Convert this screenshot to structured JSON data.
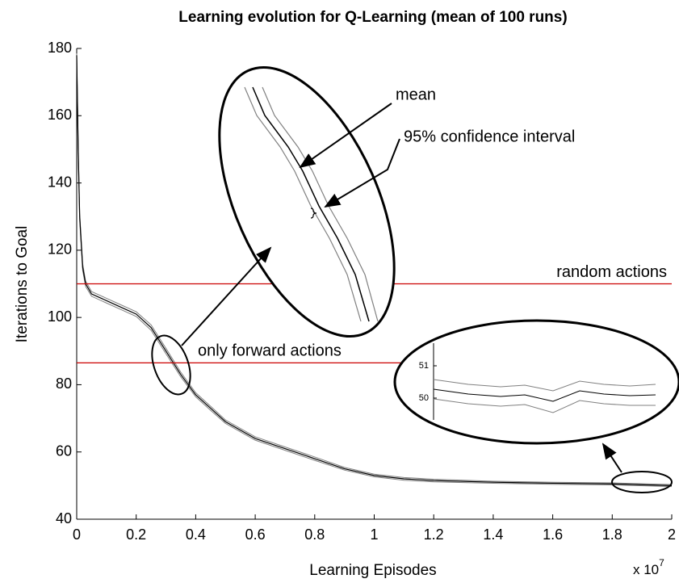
{
  "chart_data": {
    "type": "line",
    "title": "Learning evolution for Q-Learning (mean of 100 runs)",
    "x_label": "Learning Episodes",
    "y_label": "Iterations to Goal",
    "x_multiplier": {
      "base": "x 10",
      "exponent": "7"
    },
    "x": [
      0,
      0.005,
      0.01,
      0.02,
      0.03,
      0.05,
      0.1,
      0.15,
      0.2,
      0.25,
      0.3,
      0.35,
      0.4,
      0.45,
      0.5,
      0.6,
      0.7,
      0.8,
      0.9,
      1.0,
      1.1,
      1.2,
      1.4,
      1.6,
      1.8,
      2.0
    ],
    "series": [
      {
        "name": "mean",
        "color": "#000000",
        "values": [
          178,
          150,
          130,
          115,
          110,
          107,
          105,
          103,
          101,
          97,
          90,
          83,
          77,
          73,
          69,
          64,
          61,
          58,
          55,
          53,
          52,
          51.5,
          51,
          50.7,
          50.5,
          50
        ]
      }
    ],
    "ci": {
      "label": "95% confidence interval",
      "color": "#808080",
      "upper": [
        178.5,
        151,
        131,
        116,
        110.8,
        107.7,
        105.7,
        103.7,
        101.7,
        97.8,
        90.8,
        83.7,
        77.6,
        73.6,
        69.5,
        64.5,
        61.5,
        58.5,
        55.4,
        53.4,
        52.4,
        51.9,
        51.3,
        51,
        50.8,
        50.3
      ],
      "lower": [
        177.5,
        149,
        129,
        114,
        109.2,
        106.3,
        104.3,
        102.3,
        100.3,
        96.2,
        89.2,
        82.3,
        76.4,
        72.4,
        68.5,
        63.5,
        60.5,
        57.5,
        54.6,
        52.6,
        51.6,
        51.1,
        50.7,
        50.4,
        50.2,
        49.7
      ]
    },
    "reference_lines": [
      {
        "label": "random actions",
        "value": 110,
        "color": "#cc0000"
      },
      {
        "label": "only forward actions",
        "value": 86.5,
        "color": "#cc0000"
      }
    ],
    "xlim": [
      0,
      2
    ],
    "xticks": [
      0,
      0.2,
      0.4,
      0.6,
      0.8,
      1,
      1.2,
      1.4,
      1.6,
      1.8,
      2
    ],
    "ylim": [
      40,
      180
    ],
    "yticks": [
      40,
      60,
      80,
      100,
      120,
      140,
      160,
      180
    ],
    "inset": {
      "yticks": [
        50,
        51
      ]
    }
  }
}
